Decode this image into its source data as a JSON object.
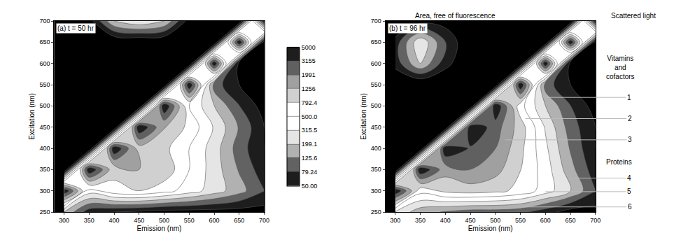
{
  "chart_data": [
    {
      "type": "contour",
      "title": "(a) t = 50 hr",
      "x_label": "Emission (nm)",
      "y_label": "Excitation (nm)",
      "x": [
        300,
        350,
        400,
        450,
        500,
        550,
        600,
        650,
        700
      ],
      "y": [
        250,
        300,
        350,
        400,
        450,
        500,
        550,
        600,
        650,
        700
      ],
      "z": [
        [
          200,
          60,
          50,
          45,
          40,
          40,
          40,
          40,
          40
        ],
        [
          5000,
          400,
          700,
          800,
          600,
          400,
          250,
          150,
          80
        ],
        [
          30,
          5000,
          900,
          1256,
          1100,
          500,
          250,
          120,
          60
        ],
        [
          30,
          30,
          5000,
          1000,
          900,
          500,
          250,
          100,
          50
        ],
        [
          30,
          30,
          30,
          5000,
          1300,
          700,
          300,
          120,
          50
        ],
        [
          30,
          30,
          30,
          30,
          5000,
          500,
          200,
          80,
          40
        ],
        [
          30,
          30,
          30,
          30,
          30,
          5000,
          100,
          50,
          40
        ],
        [
          30,
          30,
          30,
          30,
          30,
          30,
          5000,
          40,
          40
        ],
        [
          30,
          30,
          30,
          30,
          30,
          30,
          30,
          5000,
          40
        ],
        [
          30,
          40,
          200,
          300,
          200,
          40,
          30,
          30,
          5000
        ]
      ],
      "xlim": [
        280,
        700
      ],
      "ylim": [
        250,
        700
      ],
      "xticks": [
        300,
        350,
        400,
        450,
        500,
        550,
        600,
        650,
        700
      ],
      "yticks": [
        250,
        300,
        350,
        400,
        450,
        500,
        550,
        600,
        650,
        700
      ],
      "grid": false,
      "colorbar": {
        "range": [
          50,
          5000
        ],
        "log": true,
        "ticks": [
          5000,
          3155,
          1991,
          1256,
          792.4,
          {
            "value": 500,
            "label": "500.0"
          },
          315.5,
          199.1,
          125.6,
          79.24,
          {
            "value": 50,
            "label": "50.00"
          }
        ]
      }
    },
    {
      "type": "contour",
      "title": "(b) t = 96 hr",
      "x_label": "Emission (nm)",
      "y_label": "Excitation (nm)",
      "x": [
        300,
        350,
        400,
        450,
        500,
        550,
        600,
        650,
        700
      ],
      "y": [
        250,
        300,
        350,
        400,
        450,
        500,
        550,
        600,
        650,
        700
      ],
      "z": [
        [
          300,
          150,
          120,
          100,
          100,
          90,
          60,
          40,
          40
        ],
        [
          5000,
          600,
          900,
          1000,
          900,
          700,
          400,
          200,
          80
        ],
        [
          30,
          5000,
          1500,
          2000,
          1500,
          800,
          400,
          150,
          60
        ],
        [
          30,
          30,
          5000,
          3000,
          2000,
          900,
          350,
          120,
          50
        ],
        [
          30,
          30,
          30,
          5000,
          2500,
          1000,
          300,
          100,
          50
        ],
        [
          30,
          30,
          30,
          30,
          5000,
          600,
          200,
          80,
          40
        ],
        [
          30,
          30,
          30,
          30,
          30,
          5000,
          100,
          50,
          40
        ],
        [
          60,
          200,
          60,
          30,
          30,
          30,
          5000,
          40,
          40
        ],
        [
          60,
          300,
          80,
          30,
          30,
          30,
          30,
          5000,
          40
        ],
        [
          30,
          40,
          40,
          30,
          30,
          30,
          30,
          30,
          5000
        ]
      ],
      "xlim": [
        280,
        700
      ],
      "ylim": [
        250,
        700
      ],
      "xticks": [
        300,
        350,
        400,
        450,
        500,
        550,
        600,
        650,
        700
      ],
      "yticks": [
        250,
        300,
        350,
        400,
        450,
        500,
        550,
        600,
        650,
        700
      ],
      "grid": false,
      "annotations": [
        "Area, free of fluorescence",
        "Scattered light",
        "Vitamins and cofactors",
        "1",
        "2",
        "3",
        "Proteins",
        "4",
        "5",
        "6"
      ]
    }
  ]
}
